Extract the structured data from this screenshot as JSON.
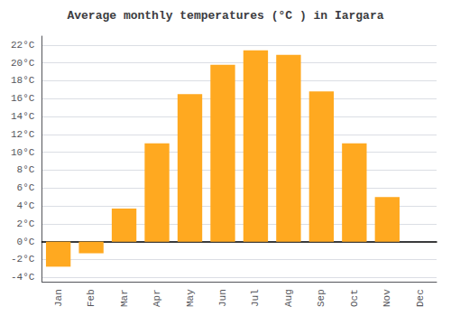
{
  "chart_data": {
    "type": "bar",
    "title": "Average monthly temperatures (°C ) in Iargara",
    "categories": [
      "Jan",
      "Feb",
      "Mar",
      "Apr",
      "May",
      "Jun",
      "Jul",
      "Aug",
      "Sep",
      "Oct",
      "Nov",
      "Dec"
    ],
    "values": [
      -2.8,
      -1.3,
      3.7,
      11.0,
      16.5,
      19.8,
      21.4,
      20.9,
      16.8,
      11.0,
      5.0,
      0.0
    ],
    "color": "#FFA920",
    "ylim": [
      -4.5,
      23
    ],
    "yticks": [
      {
        "value": -4,
        "label": "-4°C"
      },
      {
        "value": -2,
        "label": "-2°C"
      },
      {
        "value": 0,
        "label": "0°C"
      },
      {
        "value": 2,
        "label": "2°C"
      },
      {
        "value": 4,
        "label": "4°C"
      },
      {
        "value": 6,
        "label": "6°C"
      },
      {
        "value": 8,
        "label": "8°C"
      },
      {
        "value": 10,
        "label": "10°C"
      },
      {
        "value": 12,
        "label": "12°C"
      },
      {
        "value": 14,
        "label": "14°C"
      },
      {
        "value": 16,
        "label": "16°C"
      },
      {
        "value": 18,
        "label": "18°C"
      },
      {
        "value": 20,
        "label": "20°C"
      },
      {
        "value": 22,
        "label": "22°C"
      }
    ],
    "grid": true
  }
}
